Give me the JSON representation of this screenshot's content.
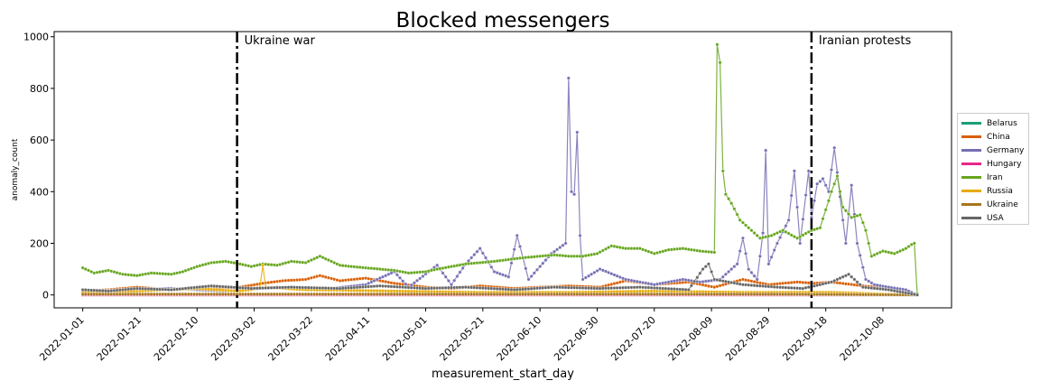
{
  "chart_data": {
    "type": "line",
    "title": "Blocked messengers",
    "xlabel": "measurement_start_day",
    "ylabel": "anomaly_count",
    "xlim": [
      "2021-12-22",
      "2022-11-01"
    ],
    "ylim": [
      -50,
      1020
    ],
    "yticks": [
      0,
      200,
      400,
      600,
      800,
      1000
    ],
    "xticks": [
      "2022-01-01",
      "2022-01-21",
      "2022-02-10",
      "2022-03-02",
      "2022-03-22",
      "2022-04-11",
      "2022-05-01",
      "2022-05-21",
      "2022-06-10",
      "2022-06-30",
      "2022-07-20",
      "2022-08-09",
      "2022-08-29",
      "2022-09-18",
      "2022-10-08"
    ],
    "grid": false,
    "legend_position": "right",
    "annotations": [
      {
        "x": "2022-02-24",
        "label": "Ukraine war"
      },
      {
        "x": "2022-09-13",
        "label": "Iranian protests"
      }
    ],
    "series": [
      {
        "name": "Belarus",
        "color": "#1b9e77",
        "points": [
          [
            "2022-01-01",
            0
          ],
          [
            "2022-03-01",
            0
          ],
          [
            "2022-06-01",
            0
          ],
          [
            "2022-09-01",
            0
          ],
          [
            "2022-10-20",
            0
          ]
        ]
      },
      {
        "name": "China",
        "color": "#d95f02",
        "points": [
          [
            "2022-01-01",
            15
          ],
          [
            "2022-01-10",
            20
          ],
          [
            "2022-01-20",
            30
          ],
          [
            "2022-02-01",
            20
          ],
          [
            "2022-02-15",
            25
          ],
          [
            "2022-02-25",
            30
          ],
          [
            "2022-03-05",
            45
          ],
          [
            "2022-03-12",
            55
          ],
          [
            "2022-03-20",
            60
          ],
          [
            "2022-03-25",
            75
          ],
          [
            "2022-04-01",
            55
          ],
          [
            "2022-04-10",
            65
          ],
          [
            "2022-04-20",
            45
          ],
          [
            "2022-05-01",
            30
          ],
          [
            "2022-05-10",
            25
          ],
          [
            "2022-05-20",
            35
          ],
          [
            "2022-06-01",
            25
          ],
          [
            "2022-06-10",
            30
          ],
          [
            "2022-06-20",
            35
          ],
          [
            "2022-07-01",
            30
          ],
          [
            "2022-07-10",
            55
          ],
          [
            "2022-07-20",
            40
          ],
          [
            "2022-08-01",
            50
          ],
          [
            "2022-08-10",
            30
          ],
          [
            "2022-08-20",
            60
          ],
          [
            "2022-08-29",
            40
          ],
          [
            "2022-09-08",
            50
          ],
          [
            "2022-09-14",
            45
          ],
          [
            "2022-09-20",
            50
          ],
          [
            "2022-10-01",
            35
          ],
          [
            "2022-10-10",
            25
          ],
          [
            "2022-10-16",
            20
          ],
          [
            "2022-10-20",
            0
          ]
        ]
      },
      {
        "name": "Germany",
        "color": "#7570b3",
        "points": [
          [
            "2022-01-01",
            10
          ],
          [
            "2022-01-15",
            20
          ],
          [
            "2022-02-01",
            25
          ],
          [
            "2022-02-20",
            15
          ],
          [
            "2022-03-10",
            30
          ],
          [
            "2022-03-25",
            20
          ],
          [
            "2022-04-10",
            40
          ],
          [
            "2022-04-20",
            90
          ],
          [
            "2022-04-25",
            30
          ],
          [
            "2022-05-05",
            115
          ],
          [
            "2022-05-10",
            40
          ],
          [
            "2022-05-15",
            120
          ],
          [
            "2022-05-20",
            180
          ],
          [
            "2022-05-25",
            90
          ],
          [
            "2022-05-30",
            70
          ],
          [
            "2022-06-02",
            230
          ],
          [
            "2022-06-06",
            60
          ],
          [
            "2022-06-14",
            160
          ],
          [
            "2022-06-19",
            200
          ],
          [
            "2022-06-20",
            840
          ],
          [
            "2022-06-21",
            400
          ],
          [
            "2022-06-22",
            390
          ],
          [
            "2022-06-23",
            630
          ],
          [
            "2022-06-24",
            230
          ],
          [
            "2022-06-25",
            60
          ],
          [
            "2022-07-01",
            100
          ],
          [
            "2022-07-10",
            60
          ],
          [
            "2022-07-20",
            40
          ],
          [
            "2022-07-30",
            60
          ],
          [
            "2022-08-05",
            50
          ],
          [
            "2022-08-12",
            60
          ],
          [
            "2022-08-18",
            120
          ],
          [
            "2022-08-20",
            220
          ],
          [
            "2022-08-22",
            100
          ],
          [
            "2022-08-25",
            60
          ],
          [
            "2022-08-27",
            240
          ],
          [
            "2022-08-28",
            560
          ],
          [
            "2022-08-29",
            120
          ],
          [
            "2022-09-01",
            200
          ],
          [
            "2022-09-05",
            290
          ],
          [
            "2022-09-07",
            480
          ],
          [
            "2022-09-09",
            200
          ],
          [
            "2022-09-12",
            480
          ],
          [
            "2022-09-13",
            300
          ],
          [
            "2022-09-15",
            430
          ],
          [
            "2022-09-17",
            450
          ],
          [
            "2022-09-19",
            400
          ],
          [
            "2022-09-21",
            570
          ],
          [
            "2022-09-23",
            380
          ],
          [
            "2022-09-25",
            200
          ],
          [
            "2022-09-27",
            425
          ],
          [
            "2022-09-29",
            200
          ],
          [
            "2022-10-02",
            60
          ],
          [
            "2022-10-05",
            40
          ],
          [
            "2022-10-10",
            30
          ],
          [
            "2022-10-16",
            20
          ],
          [
            "2022-10-20",
            0
          ]
        ]
      },
      {
        "name": "Hungary",
        "color": "#e7298a",
        "points": [
          [
            "2022-01-01",
            0
          ],
          [
            "2022-04-01",
            0
          ],
          [
            "2022-07-01",
            0
          ],
          [
            "2022-10-20",
            0
          ]
        ]
      },
      {
        "name": "Iran",
        "color": "#66a61e",
        "points": [
          [
            "2022-01-01",
            105
          ],
          [
            "2022-01-05",
            85
          ],
          [
            "2022-01-10",
            95
          ],
          [
            "2022-01-15",
            80
          ],
          [
            "2022-01-20",
            75
          ],
          [
            "2022-01-25",
            85
          ],
          [
            "2022-02-01",
            80
          ],
          [
            "2022-02-05",
            90
          ],
          [
            "2022-02-10",
            110
          ],
          [
            "2022-02-15",
            125
          ],
          [
            "2022-02-20",
            130
          ],
          [
            "2022-02-25",
            120
          ],
          [
            "2022-03-01",
            110
          ],
          [
            "2022-03-05",
            120
          ],
          [
            "2022-03-10",
            115
          ],
          [
            "2022-03-15",
            130
          ],
          [
            "2022-03-20",
            125
          ],
          [
            "2022-03-25",
            150
          ],
          [
            "2022-04-01",
            115
          ],
          [
            "2022-04-05",
            110
          ],
          [
            "2022-04-10",
            105
          ],
          [
            "2022-04-15",
            100
          ],
          [
            "2022-04-20",
            95
          ],
          [
            "2022-04-25",
            85
          ],
          [
            "2022-05-01",
            90
          ],
          [
            "2022-05-05",
            100
          ],
          [
            "2022-05-10",
            110
          ],
          [
            "2022-05-15",
            120
          ],
          [
            "2022-05-20",
            125
          ],
          [
            "2022-05-25",
            130
          ],
          [
            "2022-06-01",
            140
          ],
          [
            "2022-06-05",
            145
          ],
          [
            "2022-06-10",
            150
          ],
          [
            "2022-06-15",
            155
          ],
          [
            "2022-06-20",
            150
          ],
          [
            "2022-06-25",
            150
          ],
          [
            "2022-06-30",
            160
          ],
          [
            "2022-07-05",
            190
          ],
          [
            "2022-07-10",
            180
          ],
          [
            "2022-07-15",
            180
          ],
          [
            "2022-07-20",
            160
          ],
          [
            "2022-07-25",
            175
          ],
          [
            "2022-07-30",
            180
          ],
          [
            "2022-08-05",
            170
          ],
          [
            "2022-08-10",
            165
          ],
          [
            "2022-08-11",
            970
          ],
          [
            "2022-08-12",
            900
          ],
          [
            "2022-08-13",
            480
          ],
          [
            "2022-08-14",
            390
          ],
          [
            "2022-08-16",
            355
          ],
          [
            "2022-08-19",
            290
          ],
          [
            "2022-08-22",
            260
          ],
          [
            "2022-08-26",
            220
          ],
          [
            "2022-08-30",
            230
          ],
          [
            "2022-09-03",
            250
          ],
          [
            "2022-09-08",
            220
          ],
          [
            "2022-09-13",
            250
          ],
          [
            "2022-09-16",
            260
          ],
          [
            "2022-09-18",
            330
          ],
          [
            "2022-09-20",
            400
          ],
          [
            "2022-09-22",
            460
          ],
          [
            "2022-09-24",
            340
          ],
          [
            "2022-09-27",
            300
          ],
          [
            "2022-09-30",
            310
          ],
          [
            "2022-10-02",
            250
          ],
          [
            "2022-10-04",
            150
          ],
          [
            "2022-10-08",
            170
          ],
          [
            "2022-10-12",
            160
          ],
          [
            "2022-10-16",
            180
          ],
          [
            "2022-10-18",
            195
          ],
          [
            "2022-10-19",
            200
          ],
          [
            "2022-10-20",
            5
          ]
        ]
      },
      {
        "name": "Russia",
        "color": "#e6ab02",
        "points": [
          [
            "2022-01-01",
            10
          ],
          [
            "2022-01-20",
            15
          ],
          [
            "2022-02-10",
            25
          ],
          [
            "2022-02-24",
            15
          ],
          [
            "2022-03-01",
            20
          ],
          [
            "2022-03-04",
            30
          ],
          [
            "2022-03-05",
            115
          ],
          [
            "2022-03-06",
            30
          ],
          [
            "2022-03-20",
            20
          ],
          [
            "2022-04-20",
            15
          ],
          [
            "2022-05-20",
            10
          ],
          [
            "2022-06-20",
            10
          ],
          [
            "2022-07-20",
            15
          ],
          [
            "2022-08-20",
            10
          ],
          [
            "2022-09-20",
            10
          ],
          [
            "2022-10-20",
            0
          ]
        ]
      },
      {
        "name": "Ukraine",
        "color": "#a6761d",
        "points": [
          [
            "2022-01-01",
            3
          ],
          [
            "2022-03-01",
            3
          ],
          [
            "2022-06-01",
            3
          ],
          [
            "2022-09-01",
            3
          ],
          [
            "2022-10-20",
            0
          ]
        ]
      },
      {
        "name": "USA",
        "color": "#666666",
        "points": [
          [
            "2022-01-01",
            20
          ],
          [
            "2022-01-10",
            15
          ],
          [
            "2022-01-20",
            25
          ],
          [
            "2022-02-01",
            20
          ],
          [
            "2022-02-15",
            35
          ],
          [
            "2022-03-01",
            25
          ],
          [
            "2022-03-15",
            30
          ],
          [
            "2022-04-01",
            25
          ],
          [
            "2022-04-15",
            35
          ],
          [
            "2022-05-01",
            25
          ],
          [
            "2022-05-15",
            30
          ],
          [
            "2022-06-01",
            20
          ],
          [
            "2022-06-15",
            30
          ],
          [
            "2022-07-01",
            25
          ],
          [
            "2022-07-15",
            30
          ],
          [
            "2022-08-01",
            20
          ],
          [
            "2022-08-06",
            100
          ],
          [
            "2022-08-08",
            120
          ],
          [
            "2022-08-10",
            60
          ],
          [
            "2022-08-20",
            40
          ],
          [
            "2022-09-01",
            30
          ],
          [
            "2022-09-10",
            25
          ],
          [
            "2022-09-20",
            50
          ],
          [
            "2022-09-26",
            80
          ],
          [
            "2022-10-01",
            30
          ],
          [
            "2022-10-10",
            20
          ],
          [
            "2022-10-20",
            0
          ]
        ]
      }
    ]
  }
}
